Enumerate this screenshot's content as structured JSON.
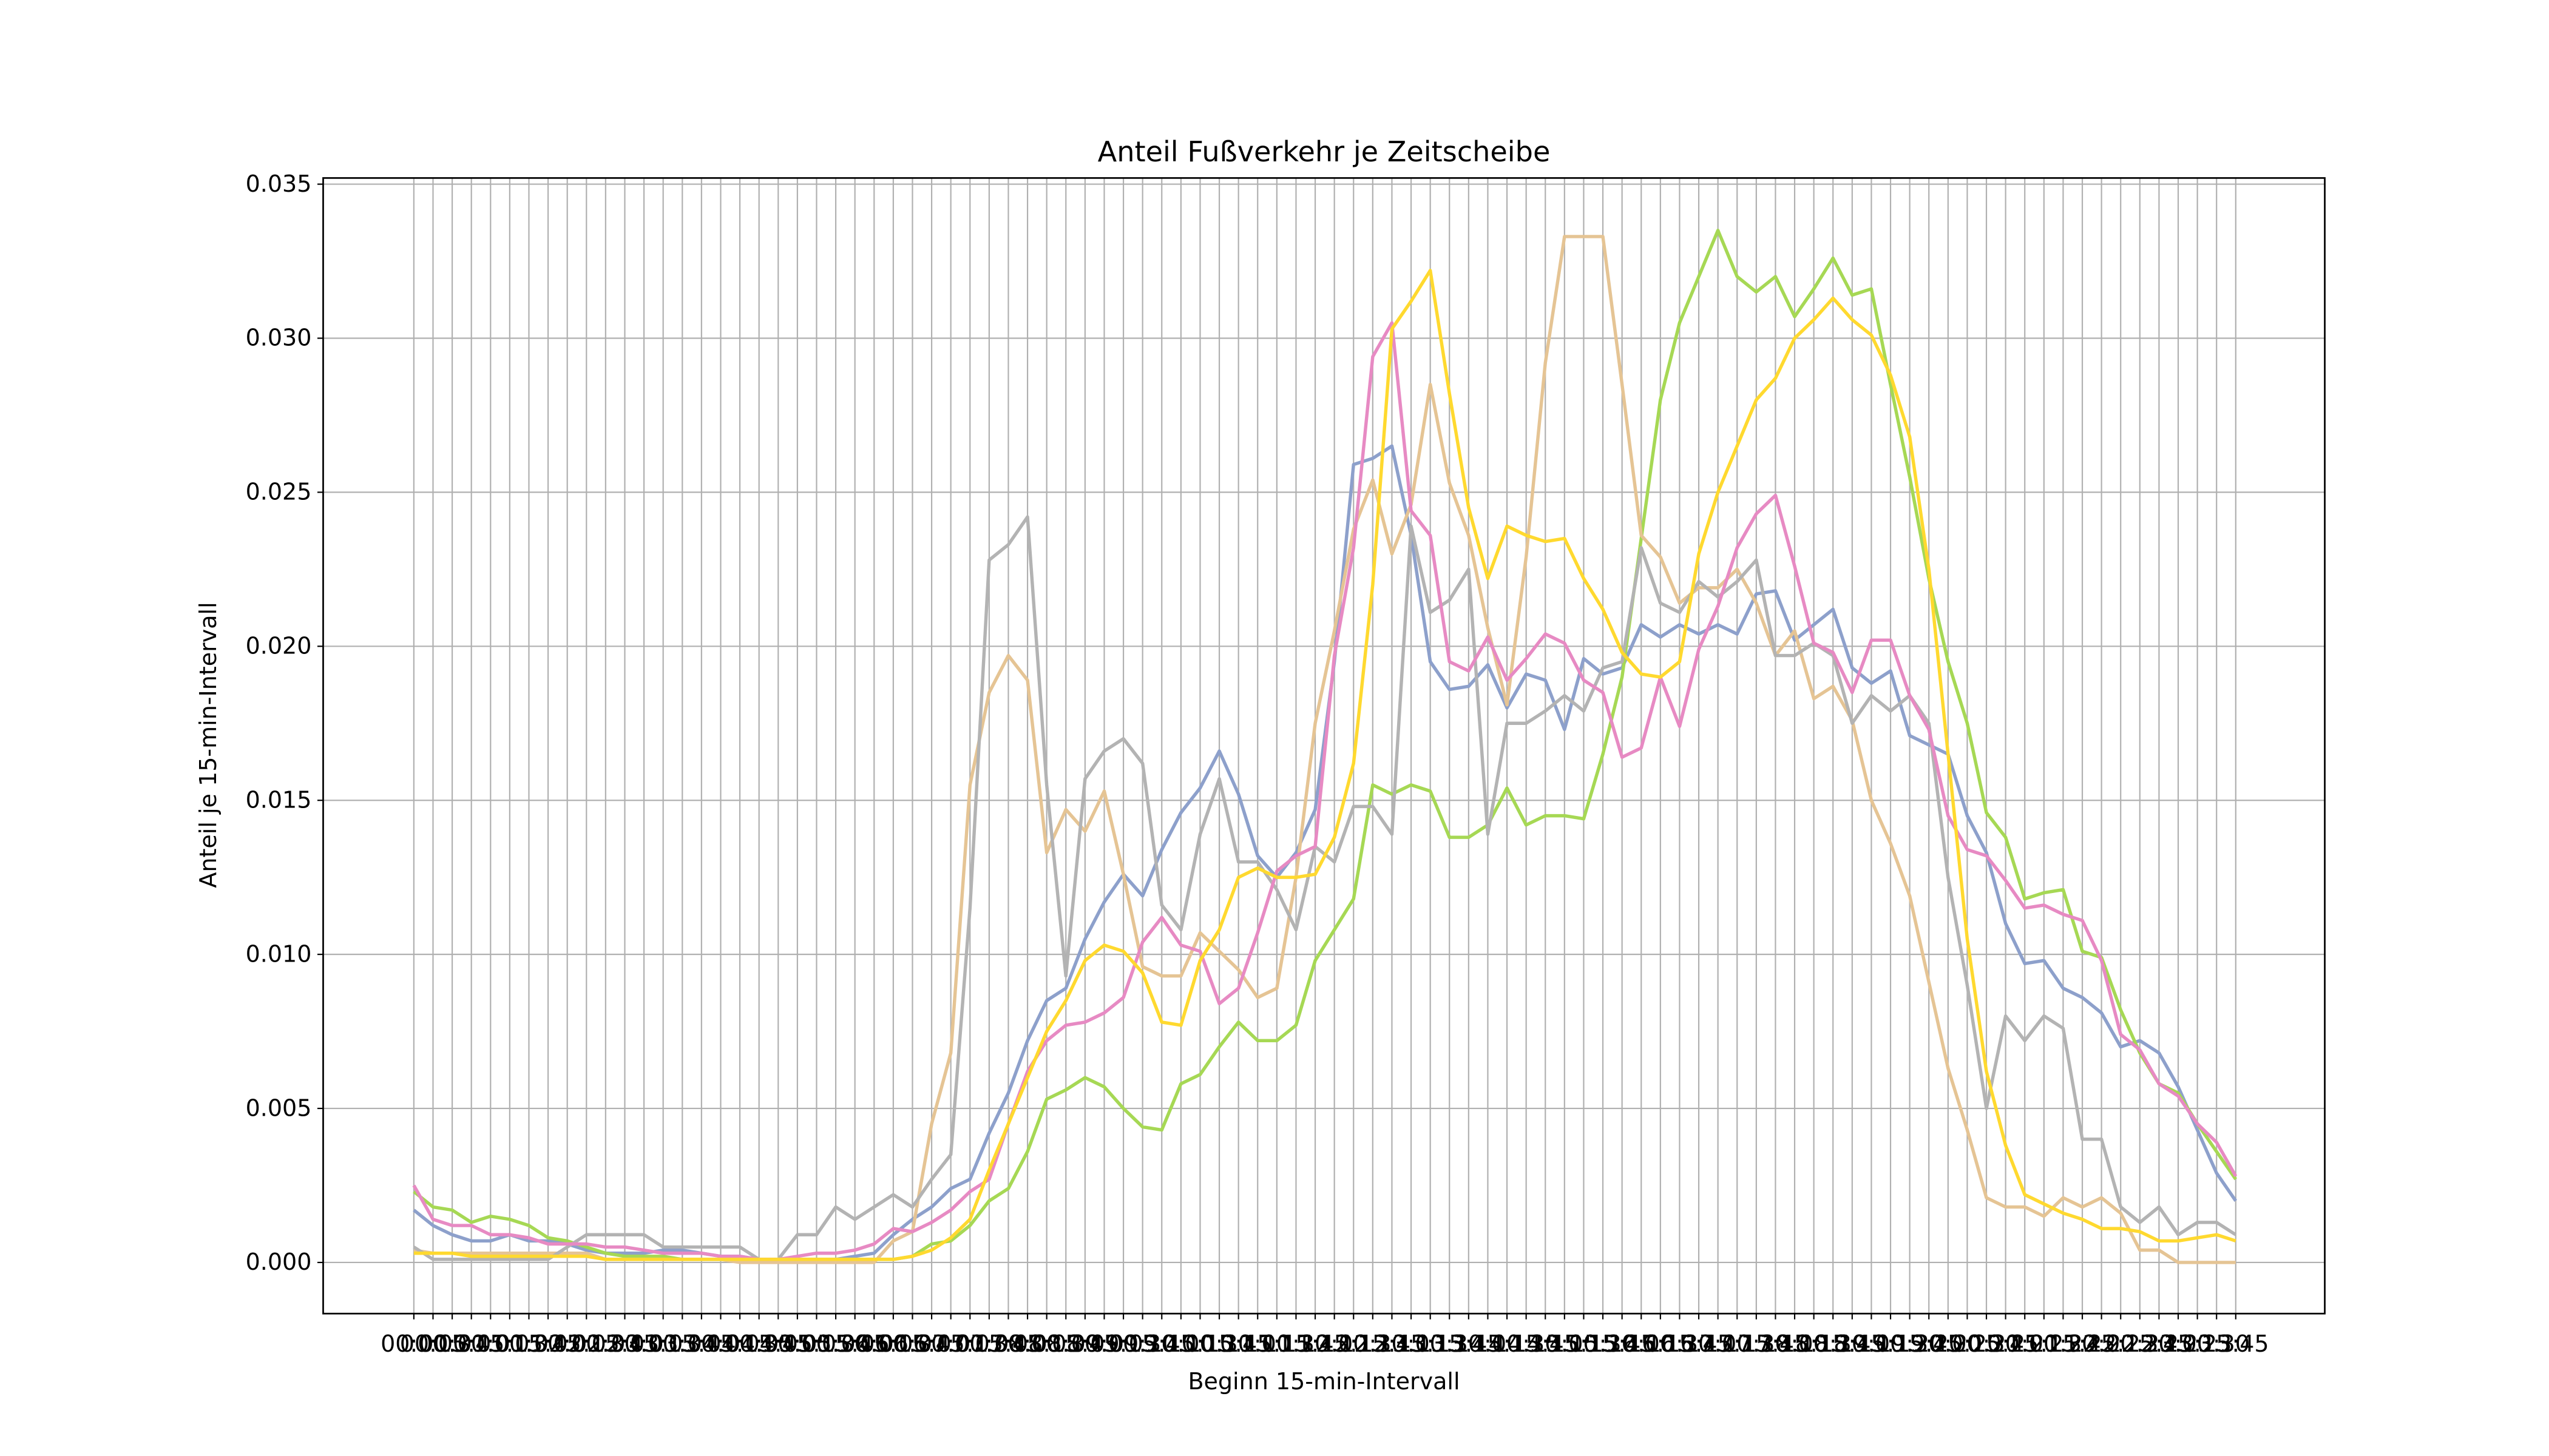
{
  "chart_data": {
    "type": "line",
    "title": "Anteil Fußverkehr je Zeitscheibe",
    "x_label": "Beginn 15-min-Intervall",
    "y_label": "Anteil je 15-min-Intervall",
    "categories": [
      "00:00",
      "00:15",
      "00:30",
      "00:45",
      "01:00",
      "01:15",
      "01:30",
      "01:45",
      "02:00",
      "02:15",
      "02:30",
      "02:45",
      "03:00",
      "03:15",
      "03:30",
      "03:45",
      "04:00",
      "04:15",
      "04:30",
      "04:45",
      "05:00",
      "05:15",
      "05:30",
      "05:45",
      "06:00",
      "06:15",
      "06:30",
      "06:45",
      "07:00",
      "07:15",
      "07:30",
      "07:45",
      "08:00",
      "08:15",
      "08:30",
      "08:45",
      "09:00",
      "09:15",
      "09:30",
      "09:45",
      "10:00",
      "10:15",
      "10:30",
      "10:45",
      "11:00",
      "11:15",
      "11:30",
      "11:45",
      "12:00",
      "12:15",
      "12:30",
      "12:45",
      "13:00",
      "13:15",
      "13:30",
      "13:45",
      "14:00",
      "14:15",
      "14:30",
      "14:45",
      "15:00",
      "15:15",
      "15:30",
      "15:45",
      "16:00",
      "16:15",
      "16:30",
      "16:45",
      "17:00",
      "17:15",
      "17:30",
      "17:45",
      "18:00",
      "18:15",
      "18:30",
      "18:45",
      "19:00",
      "19:15",
      "19:30",
      "19:45",
      "20:00",
      "20:15",
      "20:30",
      "20:45",
      "21:00",
      "21:15",
      "21:30",
      "21:45",
      "22:00",
      "22:15",
      "22:30",
      "22:45",
      "23:00",
      "23:15",
      "23:30",
      "23:45"
    ],
    "series": [
      {
        "color": "#8da0cb",
        "values": [
          0.0017,
          0.0012,
          0.0009,
          0.0007,
          0.0007,
          0.0009,
          0.0007,
          0.0007,
          0.0006,
          0.0004,
          0.0003,
          0.0003,
          0.0003,
          0.0004,
          0.0004,
          0.0003,
          0.0002,
          0.0002,
          0.0001,
          0.0001,
          0.0001,
          0.0001,
          0.0001,
          0.0002,
          0.0003,
          0.0009,
          0.0014,
          0.0018,
          0.0024,
          0.0027,
          0.0042,
          0.0055,
          0.0072,
          0.0085,
          0.0089,
          0.0105,
          0.0117,
          0.0126,
          0.0119,
          0.0134,
          0.0146,
          0.0154,
          0.0166,
          0.0152,
          0.0132,
          0.0125,
          0.0133,
          0.0147,
          0.0195,
          0.0259,
          0.0261,
          0.0265,
          0.0236,
          0.0195,
          0.0186,
          0.0187,
          0.0194,
          0.018,
          0.0191,
          0.0189,
          0.0173,
          0.0196,
          0.0191,
          0.0193,
          0.0207,
          0.0203,
          0.0207,
          0.0204,
          0.0207,
          0.0204,
          0.0217,
          0.0218,
          0.0202,
          0.0207,
          0.0212,
          0.0193,
          0.0188,
          0.0192,
          0.0171,
          0.0168,
          0.0165,
          0.0145,
          0.0133,
          0.011,
          0.0097,
          0.0098,
          0.0089,
          0.0086,
          0.0081,
          0.007,
          0.0072,
          0.0068,
          0.0057,
          0.0043,
          0.0029,
          0.002
        ]
      },
      {
        "color": "#a6d854",
        "values": [
          0.0023,
          0.0018,
          0.0017,
          0.0013,
          0.0015,
          0.0014,
          0.0012,
          0.0008,
          0.0007,
          0.0005,
          0.0003,
          0.0002,
          0.0002,
          0.0002,
          0.0001,
          0.0001,
          0.0001,
          0.0001,
          0.0001,
          0.0001,
          0.0001,
          0.0001,
          0.0001,
          0.0001,
          0.0001,
          0.0001,
          0.0002,
          0.0006,
          0.0007,
          0.0012,
          0.002,
          0.0024,
          0.0036,
          0.0053,
          0.0056,
          0.006,
          0.0057,
          0.005,
          0.0044,
          0.0043,
          0.0058,
          0.0061,
          0.007,
          0.0078,
          0.0072,
          0.0072,
          0.0077,
          0.0098,
          0.0108,
          0.0118,
          0.0155,
          0.0152,
          0.0155,
          0.0153,
          0.0138,
          0.0138,
          0.0142,
          0.0154,
          0.0142,
          0.0145,
          0.0145,
          0.0144,
          0.0165,
          0.019,
          0.0235,
          0.028,
          0.0305,
          0.032,
          0.0335,
          0.032,
          0.0315,
          0.032,
          0.0307,
          0.0316,
          0.0326,
          0.0314,
          0.0316,
          0.0285,
          0.0255,
          0.0222,
          0.0195,
          0.0175,
          0.0146,
          0.0138,
          0.0118,
          0.012,
          0.0121,
          0.0101,
          0.0099,
          0.0082,
          0.0068,
          0.0058,
          0.0055,
          0.0045,
          0.0036,
          0.0027
        ]
      },
      {
        "color": "#e5c494",
        "values": [
          0.0004,
          0.0003,
          0.0003,
          0.0003,
          0.0003,
          0.0003,
          0.0003,
          0.0003,
          0.0003,
          0.0003,
          0.0001,
          0.0001,
          0.0001,
          0.0001,
          0.0001,
          0.0001,
          0.0001,
          0,
          0,
          0,
          0,
          0,
          0,
          0,
          0,
          0.0007,
          0.001,
          0.0045,
          0.0068,
          0.0155,
          0.0185,
          0.0197,
          0.0189,
          0.0133,
          0.0147,
          0.014,
          0.0153,
          0.0126,
          0.0096,
          0.0093,
          0.0093,
          0.0107,
          0.0101,
          0.0095,
          0.0086,
          0.0089,
          0.0125,
          0.0175,
          0.0205,
          0.0238,
          0.0254,
          0.023,
          0.0246,
          0.0285,
          0.0253,
          0.0236,
          0.0206,
          0.0181,
          0.0229,
          0.0292,
          0.0333,
          0.0333,
          0.0333,
          0.0285,
          0.0236,
          0.0229,
          0.0214,
          0.0219,
          0.0219,
          0.0225,
          0.0214,
          0.0197,
          0.0205,
          0.0183,
          0.0187,
          0.0176,
          0.015,
          0.0136,
          0.0119,
          0.0091,
          0.0063,
          0.0043,
          0.0021,
          0.0018,
          0.0018,
          0.0015,
          0.0021,
          0.0018,
          0.0021,
          0.0016,
          0.0004,
          0.0004,
          0,
          0,
          0,
          0
        ]
      },
      {
        "color": "#b3b3b3",
        "values": [
          0.0005,
          0.0001,
          0.0001,
          0.0001,
          0.0001,
          0.0001,
          0.0001,
          0.0001,
          0.0005,
          0.0009,
          0.0009,
          0.0009,
          0.0009,
          0.0005,
          0.0005,
          0.0005,
          0.0005,
          0.0005,
          0.0001,
          0.0001,
          0.0009,
          0.0009,
          0.0018,
          0.0014,
          0.0018,
          0.0022,
          0.0018,
          0.0027,
          0.0035,
          0.0115,
          0.0228,
          0.0233,
          0.0242,
          0.0155,
          0.0093,
          0.0157,
          0.0166,
          0.017,
          0.0162,
          0.0116,
          0.0108,
          0.0139,
          0.0157,
          0.013,
          0.013,
          0.0121,
          0.0108,
          0.0135,
          0.013,
          0.0148,
          0.0148,
          0.0139,
          0.0239,
          0.0211,
          0.0215,
          0.0225,
          0.0139,
          0.0175,
          0.0175,
          0.0179,
          0.0184,
          0.0179,
          0.0193,
          0.0195,
          0.0232,
          0.0214,
          0.0211,
          0.0221,
          0.0216,
          0.0221,
          0.0228,
          0.0197,
          0.0197,
          0.0201,
          0.0197,
          0.0175,
          0.0184,
          0.0179,
          0.0184,
          0.0175,
          0.0125,
          0.009,
          0.005,
          0.008,
          0.0072,
          0.008,
          0.0076,
          0.004,
          0.004,
          0.0018,
          0.0013,
          0.0018,
          0.0009,
          0.0013,
          0.0013,
          0.0009
        ]
      },
      {
        "color": "#e78ac3",
        "values": [
          0.0025,
          0.0014,
          0.0012,
          0.0012,
          0.0009,
          0.0009,
          0.0008,
          0.0006,
          0.0006,
          0.0006,
          0.0005,
          0.0005,
          0.0004,
          0.0003,
          0.0003,
          0.0003,
          0.0002,
          0.0002,
          0.0001,
          0.0001,
          0.0002,
          0.0003,
          0.0003,
          0.0004,
          0.0006,
          0.0011,
          0.001,
          0.0013,
          0.0017,
          0.0023,
          0.0027,
          0.0045,
          0.0062,
          0.0072,
          0.0077,
          0.0078,
          0.0081,
          0.0086,
          0.0104,
          0.0112,
          0.0103,
          0.0101,
          0.0084,
          0.0089,
          0.0107,
          0.0127,
          0.0132,
          0.0135,
          0.0197,
          0.0232,
          0.0294,
          0.0305,
          0.0244,
          0.0236,
          0.0195,
          0.0192,
          0.0203,
          0.0189,
          0.0196,
          0.0204,
          0.0201,
          0.0189,
          0.0185,
          0.0164,
          0.0167,
          0.019,
          0.0174,
          0.0199,
          0.0213,
          0.0232,
          0.0243,
          0.0249,
          0.0226,
          0.0201,
          0.0198,
          0.0185,
          0.0202,
          0.0202,
          0.0184,
          0.0173,
          0.0145,
          0.0134,
          0.0132,
          0.0124,
          0.0115,
          0.0116,
          0.0113,
          0.0111,
          0.0098,
          0.0074,
          0.0069,
          0.0058,
          0.0054,
          0.0045,
          0.0039,
          0.0028
        ]
      },
      {
        "color": "#ffd92f",
        "values": [
          0.0003,
          0.0003,
          0.0003,
          0.0002,
          0.0002,
          0.0002,
          0.0002,
          0.0002,
          0.0002,
          0.0002,
          0.0001,
          0.0001,
          0.0001,
          0.0001,
          0.0001,
          0.0001,
          0.0001,
          0.0001,
          0.0001,
          0.0001,
          0.0001,
          0.0001,
          0.0001,
          0.0001,
          0.0001,
          0.0001,
          0.0002,
          0.0004,
          0.0008,
          0.0014,
          0.003,
          0.0045,
          0.006,
          0.0075,
          0.0085,
          0.0098,
          0.0103,
          0.0101,
          0.0094,
          0.0078,
          0.0077,
          0.0098,
          0.0108,
          0.0125,
          0.0128,
          0.0125,
          0.0125,
          0.0126,
          0.0138,
          0.0162,
          0.022,
          0.0303,
          0.0312,
          0.0322,
          0.0282,
          0.0245,
          0.0222,
          0.0239,
          0.0236,
          0.0234,
          0.0235,
          0.0222,
          0.0212,
          0.0198,
          0.0191,
          0.019,
          0.0195,
          0.023,
          0.025,
          0.0265,
          0.028,
          0.0287,
          0.03,
          0.0306,
          0.0313,
          0.0306,
          0.0301,
          0.0288,
          0.0268,
          0.0225,
          0.0165,
          0.0105,
          0.0062,
          0.0038,
          0.0022,
          0.0019,
          0.0016,
          0.0014,
          0.0011,
          0.0011,
          0.001,
          0.0007,
          0.0007,
          0.0008,
          0.0009,
          0.0007
        ]
      }
    ],
    "ylim": [
      -0.00166,
      0.0352
    ],
    "yticks": [
      {
        "value": 0,
        "label": "0.000"
      },
      {
        "value": 0.005,
        "label": "0.005"
      },
      {
        "value": 0.01,
        "label": "0.010"
      },
      {
        "value": 0.015,
        "label": "0.015"
      },
      {
        "value": 0.02,
        "label": "0.020"
      },
      {
        "value": 0.025,
        "label": "0.025"
      },
      {
        "value": 0.03,
        "label": "0.030"
      },
      {
        "value": 0.035,
        "label": "0.035"
      }
    ],
    "grid": true
  }
}
